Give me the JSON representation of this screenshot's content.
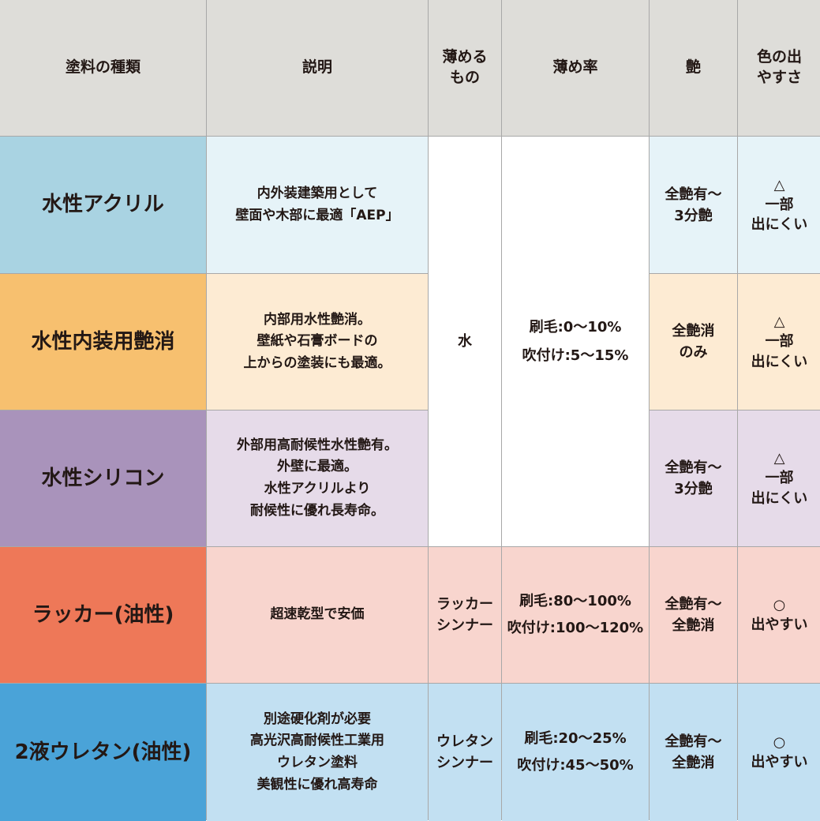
{
  "colors": {
    "header": "#deddd9",
    "rows": [
      {
        "main": "#a9d3e2",
        "light": "#e6f3f8"
      },
      {
        "main": "#f7c06f",
        "light": "#fdebd3"
      },
      {
        "main": "#a993bb",
        "light": "#e6dbe9"
      },
      {
        "main": "#ee7858",
        "light": "#f8d5ce"
      },
      {
        "main": "#4aa3d8",
        "light": "#c2e0f2"
      }
    ]
  },
  "headers": [
    "塗料の種類",
    "説明",
    "薄める\nもの",
    "薄め率",
    "艶",
    "色の出\nやすさ"
  ],
  "shared_water": {
    "thinner": "水",
    "ratio": "刷毛:0〜10%\n吹付け:5〜15%"
  },
  "rows": [
    {
      "name": "水性アクリル",
      "desc": "内外装建築用として\n壁面や木部に最適「AEP」",
      "gloss": "全艶有〜\n3分艶",
      "color": "△\n一部\n出にくい"
    },
    {
      "name": "水性内装用艶消",
      "desc": "内部用水性艶消。\n壁紙や石膏ボードの\n上からの塗装にも最適。",
      "gloss": "全艶消\nのみ",
      "color": "△\n一部\n出にくい"
    },
    {
      "name": "水性シリコン",
      "desc": "外部用高耐候性水性艶有。\n外壁に最適。\n水性アクリルより\n耐候性に優れ長寿命。",
      "gloss": "全艶有〜\n3分艶",
      "color": "△\n一部\n出にくい"
    },
    {
      "name": "ラッカー(油性)",
      "desc": "超速乾型で安価",
      "thinner": "ラッカー\nシンナー",
      "ratio": "刷毛:80〜100%\n吹付け:100〜120%",
      "gloss": "全艶有〜\n全艶消",
      "color": "○\n出やすい"
    },
    {
      "name": "2液ウレタン(油性)",
      "desc": "別途硬化剤が必要\n高光沢高耐候性工業用\nウレタン塗料\n美観性に優れ高寿命",
      "thinner": "ウレタン\nシンナー",
      "ratio": "刷毛:20〜25%\n吹付け:45〜50%",
      "gloss": "全艶有〜\n全艶消",
      "color": "○\n出やすい"
    }
  ]
}
